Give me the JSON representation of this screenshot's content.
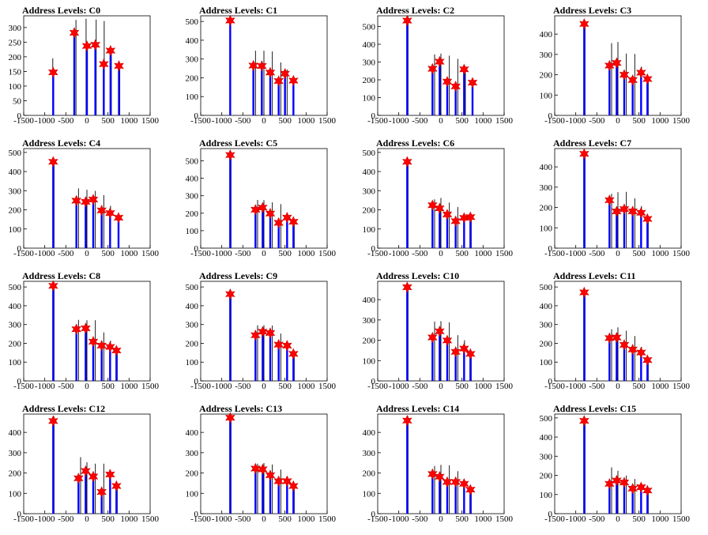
{
  "page": {
    "title_prefix": "Address Levels: ",
    "x_ticks": [
      -1500,
      -1000,
      -500,
      0,
      500,
      1000,
      1500
    ],
    "x_tick_labels": [
      "-1500",
      "-1000",
      "-500",
      "0",
      "500",
      "1000",
      "1500"
    ],
    "xlim": [
      -1500,
      1500
    ],
    "colors": {
      "histogram": "#0000ff",
      "spike": "#000000",
      "marker": "#ff0000",
      "frame": "#000000"
    },
    "marker_icon": "star-marker-icon"
  },
  "chart_data": [
    {
      "type": "bar",
      "title": "Address Levels: C0",
      "ylim": [
        0,
        340
      ],
      "y_ticks": [
        0,
        50,
        100,
        150,
        200,
        250,
        300
      ],
      "peaks": [
        {
          "x": -800,
          "y": 147
        },
        {
          "x": -300,
          "y": 282
        },
        {
          "x": 0,
          "y": 237
        },
        {
          "x": 200,
          "y": 241
        },
        {
          "x": 400,
          "y": 175
        },
        {
          "x": 560,
          "y": 221
        },
        {
          "x": 760,
          "y": 169
        }
      ],
      "spikes": [
        {
          "x": -810,
          "y": 195
        },
        {
          "x": -260,
          "y": 326
        },
        {
          "x": -20,
          "y": 330
        },
        {
          "x": 220,
          "y": 327
        },
        {
          "x": 410,
          "y": 322
        },
        {
          "x": 580,
          "y": 226
        },
        {
          "x": 780,
          "y": 168
        }
      ]
    },
    {
      "type": "bar",
      "title": "Address Levels: C1",
      "ylim": [
        0,
        530
      ],
      "y_ticks": [
        0,
        100,
        200,
        300,
        400,
        500
      ],
      "peaks": [
        {
          "x": -800,
          "y": 505
        },
        {
          "x": -250,
          "y": 265
        },
        {
          "x": -50,
          "y": 263
        },
        {
          "x": 150,
          "y": 228
        },
        {
          "x": 350,
          "y": 183
        },
        {
          "x": 500,
          "y": 222
        },
        {
          "x": 700,
          "y": 185
        }
      ],
      "spikes": [
        {
          "x": -800,
          "y": 520
        },
        {
          "x": -200,
          "y": 344
        },
        {
          "x": 0,
          "y": 344
        },
        {
          "x": 200,
          "y": 340
        },
        {
          "x": 400,
          "y": 282
        },
        {
          "x": 550,
          "y": 244
        },
        {
          "x": 700,
          "y": 203
        }
      ]
    },
    {
      "type": "bar",
      "title": "Address Levels: C2",
      "ylim": [
        0,
        560
      ],
      "y_ticks": [
        0,
        100,
        200,
        300,
        400,
        500
      ],
      "peaks": [
        {
          "x": -800,
          "y": 533
        },
        {
          "x": -200,
          "y": 262
        },
        {
          "x": -30,
          "y": 302
        },
        {
          "x": 150,
          "y": 190
        },
        {
          "x": 350,
          "y": 163
        },
        {
          "x": 550,
          "y": 259
        },
        {
          "x": 750,
          "y": 184
        }
      ],
      "spikes": [
        {
          "x": -780,
          "y": 556
        },
        {
          "x": -150,
          "y": 343
        },
        {
          "x": 0,
          "y": 347
        },
        {
          "x": 200,
          "y": 336
        },
        {
          "x": 400,
          "y": 318
        },
        {
          "x": 580,
          "y": 273
        },
        {
          "x": 760,
          "y": 196
        }
      ]
    },
    {
      "type": "bar",
      "title": "Address Levels: C3",
      "ylim": [
        0,
        490
      ],
      "y_ticks": [
        0,
        100,
        200,
        300,
        400
      ],
      "peaks": [
        {
          "x": -800,
          "y": 450
        },
        {
          "x": -200,
          "y": 245
        },
        {
          "x": -30,
          "y": 258
        },
        {
          "x": 150,
          "y": 200
        },
        {
          "x": 350,
          "y": 174
        },
        {
          "x": 550,
          "y": 210
        },
        {
          "x": 700,
          "y": 179
        }
      ],
      "spikes": [
        {
          "x": -780,
          "y": 468
        },
        {
          "x": -150,
          "y": 356
        },
        {
          "x": 0,
          "y": 361
        },
        {
          "x": 200,
          "y": 304
        },
        {
          "x": 400,
          "y": 302
        },
        {
          "x": 560,
          "y": 240
        },
        {
          "x": 720,
          "y": 178
        }
      ]
    },
    {
      "type": "bar",
      "title": "Address Levels: C4",
      "ylim": [
        0,
        520
      ],
      "y_ticks": [
        0,
        100,
        200,
        300,
        400,
        500
      ],
      "peaks": [
        {
          "x": -800,
          "y": 451
        },
        {
          "x": -250,
          "y": 248
        },
        {
          "x": -30,
          "y": 242
        },
        {
          "x": 150,
          "y": 254
        },
        {
          "x": 350,
          "y": 197
        },
        {
          "x": 550,
          "y": 183
        },
        {
          "x": 750,
          "y": 159
        }
      ],
      "spikes": [
        {
          "x": -780,
          "y": 468
        },
        {
          "x": -200,
          "y": 312
        },
        {
          "x": 0,
          "y": 305
        },
        {
          "x": 200,
          "y": 299
        },
        {
          "x": 400,
          "y": 277
        },
        {
          "x": 560,
          "y": 221
        },
        {
          "x": 760,
          "y": 176
        }
      ]
    },
    {
      "type": "bar",
      "title": "Address Levels: C5",
      "ylim": [
        0,
        570
      ],
      "y_ticks": [
        0,
        100,
        200,
        300,
        400,
        500
      ],
      "peaks": [
        {
          "x": -800,
          "y": 533
        },
        {
          "x": -200,
          "y": 220
        },
        {
          "x": -30,
          "y": 232
        },
        {
          "x": 150,
          "y": 198
        },
        {
          "x": 350,
          "y": 145
        },
        {
          "x": 550,
          "y": 175
        },
        {
          "x": 700,
          "y": 151
        }
      ],
      "spikes": [
        {
          "x": -780,
          "y": 552
        },
        {
          "x": -150,
          "y": 276
        },
        {
          "x": 0,
          "y": 275
        },
        {
          "x": 200,
          "y": 262
        },
        {
          "x": 400,
          "y": 252
        },
        {
          "x": 560,
          "y": 196
        },
        {
          "x": 720,
          "y": 158
        }
      ]
    },
    {
      "type": "bar",
      "title": "Address Levels: C6",
      "ylim": [
        0,
        520
      ],
      "y_ticks": [
        0,
        100,
        200,
        300,
        400,
        500
      ],
      "peaks": [
        {
          "x": -800,
          "y": 451
        },
        {
          "x": -200,
          "y": 224
        },
        {
          "x": -30,
          "y": 208
        },
        {
          "x": 150,
          "y": 176
        },
        {
          "x": 350,
          "y": 141
        },
        {
          "x": 550,
          "y": 158
        },
        {
          "x": 700,
          "y": 162
        }
      ],
      "spikes": [
        {
          "x": -780,
          "y": 468
        },
        {
          "x": -150,
          "y": 255
        },
        {
          "x": 0,
          "y": 262
        },
        {
          "x": 200,
          "y": 238
        },
        {
          "x": 400,
          "y": 215
        },
        {
          "x": 560,
          "y": 174
        },
        {
          "x": 720,
          "y": 170
        }
      ]
    },
    {
      "type": "bar",
      "title": "Address Levels: C7",
      "ylim": [
        0,
        490
      ],
      "y_ticks": [
        0,
        100,
        200,
        300,
        400
      ],
      "peaks": [
        {
          "x": -800,
          "y": 464
        },
        {
          "x": -200,
          "y": 236
        },
        {
          "x": -30,
          "y": 181
        },
        {
          "x": 150,
          "y": 192
        },
        {
          "x": 350,
          "y": 181
        },
        {
          "x": 550,
          "y": 174
        },
        {
          "x": 700,
          "y": 144
        }
      ],
      "spikes": [
        {
          "x": -780,
          "y": 478
        },
        {
          "x": -150,
          "y": 268
        },
        {
          "x": 0,
          "y": 275
        },
        {
          "x": 200,
          "y": 277
        },
        {
          "x": 400,
          "y": 245
        },
        {
          "x": 560,
          "y": 207
        },
        {
          "x": 720,
          "y": 150
        }
      ]
    },
    {
      "type": "bar",
      "title": "Address Levels: C8",
      "ylim": [
        0,
        530
      ],
      "y_ticks": [
        0,
        100,
        200,
        300,
        400,
        500
      ],
      "peaks": [
        {
          "x": -800,
          "y": 506
        },
        {
          "x": -250,
          "y": 275
        },
        {
          "x": -30,
          "y": 280
        },
        {
          "x": 150,
          "y": 209
        },
        {
          "x": 350,
          "y": 188
        },
        {
          "x": 550,
          "y": 181
        },
        {
          "x": 700,
          "y": 162
        }
      ],
      "spikes": [
        {
          "x": -780,
          "y": 520
        },
        {
          "x": -200,
          "y": 325
        },
        {
          "x": 0,
          "y": 323
        },
        {
          "x": 200,
          "y": 323
        },
        {
          "x": 400,
          "y": 258
        },
        {
          "x": 560,
          "y": 214
        },
        {
          "x": 720,
          "y": 169
        }
      ]
    },
    {
      "type": "bar",
      "title": "Address Levels: C9",
      "ylim": [
        0,
        530
      ],
      "y_ticks": [
        0,
        100,
        200,
        300,
        400,
        500
      ],
      "peaks": [
        {
          "x": -800,
          "y": 462
        },
        {
          "x": -200,
          "y": 243
        },
        {
          "x": -30,
          "y": 262
        },
        {
          "x": 150,
          "y": 255
        },
        {
          "x": 350,
          "y": 193
        },
        {
          "x": 550,
          "y": 188
        },
        {
          "x": 700,
          "y": 144
        }
      ],
      "spikes": [
        {
          "x": -780,
          "y": 480
        },
        {
          "x": -150,
          "y": 296
        },
        {
          "x": 0,
          "y": 296
        },
        {
          "x": 200,
          "y": 295
        },
        {
          "x": 400,
          "y": 252
        },
        {
          "x": 560,
          "y": 203
        },
        {
          "x": 720,
          "y": 150
        }
      ]
    },
    {
      "type": "bar",
      "title": "Address Levels: C10",
      "ylim": [
        0,
        490
      ],
      "y_ticks": [
        0,
        100,
        200,
        300,
        400
      ],
      "peaks": [
        {
          "x": -800,
          "y": 461
        },
        {
          "x": -200,
          "y": 214
        },
        {
          "x": -30,
          "y": 244
        },
        {
          "x": 150,
          "y": 199
        },
        {
          "x": 350,
          "y": 143
        },
        {
          "x": 550,
          "y": 159
        },
        {
          "x": 700,
          "y": 133
        }
      ],
      "spikes": [
        {
          "x": -780,
          "y": 478
        },
        {
          "x": -150,
          "y": 292
        },
        {
          "x": 0,
          "y": 294
        },
        {
          "x": 200,
          "y": 288
        },
        {
          "x": 400,
          "y": 225
        },
        {
          "x": 560,
          "y": 200
        },
        {
          "x": 720,
          "y": 142
        }
      ]
    },
    {
      "type": "bar",
      "title": "Address Levels: C11",
      "ylim": [
        0,
        530
      ],
      "y_ticks": [
        0,
        100,
        200,
        300,
        400,
        500
      ],
      "peaks": [
        {
          "x": -800,
          "y": 471
        },
        {
          "x": -200,
          "y": 228
        },
        {
          "x": -30,
          "y": 231
        },
        {
          "x": 150,
          "y": 192
        },
        {
          "x": 350,
          "y": 167
        },
        {
          "x": 550,
          "y": 151
        },
        {
          "x": 700,
          "y": 111
        }
      ],
      "spikes": [
        {
          "x": -780,
          "y": 480
        },
        {
          "x": -150,
          "y": 275
        },
        {
          "x": 0,
          "y": 285
        },
        {
          "x": 200,
          "y": 267
        },
        {
          "x": 400,
          "y": 239
        },
        {
          "x": 560,
          "y": 181
        },
        {
          "x": 720,
          "y": 116
        }
      ]
    },
    {
      "type": "bar",
      "title": "Address Levels: C12",
      "ylim": [
        0,
        490
      ],
      "y_ticks": [
        0,
        100,
        200,
        300,
        400
      ],
      "peaks": [
        {
          "x": -800,
          "y": 456
        },
        {
          "x": -200,
          "y": 174
        },
        {
          "x": -30,
          "y": 210
        },
        {
          "x": 150,
          "y": 183
        },
        {
          "x": 350,
          "y": 107
        },
        {
          "x": 550,
          "y": 193
        },
        {
          "x": 700,
          "y": 136
        }
      ],
      "spikes": [
        {
          "x": -780,
          "y": 478
        },
        {
          "x": -150,
          "y": 278
        },
        {
          "x": 0,
          "y": 253
        },
        {
          "x": 200,
          "y": 246
        },
        {
          "x": 400,
          "y": 246
        },
        {
          "x": 560,
          "y": 198
        },
        {
          "x": 720,
          "y": 140
        }
      ]
    },
    {
      "type": "bar",
      "title": "Address Levels: C13",
      "ylim": [
        0,
        490
      ],
      "y_ticks": [
        0,
        100,
        200,
        300,
        400
      ],
      "peaks": [
        {
          "x": -800,
          "y": 472
        },
        {
          "x": -200,
          "y": 222
        },
        {
          "x": -30,
          "y": 218
        },
        {
          "x": 150,
          "y": 189
        },
        {
          "x": 350,
          "y": 160
        },
        {
          "x": 550,
          "y": 160
        },
        {
          "x": 700,
          "y": 136
        }
      ],
      "spikes": [
        {
          "x": -780,
          "y": 480
        },
        {
          "x": -150,
          "y": 246
        },
        {
          "x": 0,
          "y": 249
        },
        {
          "x": 200,
          "y": 242
        },
        {
          "x": 400,
          "y": 217
        },
        {
          "x": 560,
          "y": 182
        },
        {
          "x": 720,
          "y": 145
        }
      ]
    },
    {
      "type": "bar",
      "title": "Address Levels: C14",
      "ylim": [
        0,
        490
      ],
      "y_ticks": [
        0,
        100,
        200,
        300,
        400
      ],
      "peaks": [
        {
          "x": -800,
          "y": 458
        },
        {
          "x": -200,
          "y": 195
        },
        {
          "x": -30,
          "y": 182
        },
        {
          "x": 150,
          "y": 156
        },
        {
          "x": 350,
          "y": 156
        },
        {
          "x": 550,
          "y": 147
        },
        {
          "x": 700,
          "y": 118
        }
      ],
      "spikes": [
        {
          "x": -780,
          "y": 478
        },
        {
          "x": -150,
          "y": 235
        },
        {
          "x": 0,
          "y": 240
        },
        {
          "x": 200,
          "y": 238
        },
        {
          "x": 400,
          "y": 209
        },
        {
          "x": 560,
          "y": 166
        },
        {
          "x": 720,
          "y": 125
        }
      ]
    },
    {
      "type": "bar",
      "title": "Address Levels: C15",
      "ylim": [
        0,
        520
      ],
      "y_ticks": [
        0,
        100,
        200,
        300,
        400,
        500
      ],
      "peaks": [
        {
          "x": -800,
          "y": 485
        },
        {
          "x": -200,
          "y": 156
        },
        {
          "x": -30,
          "y": 173
        },
        {
          "x": 150,
          "y": 163
        },
        {
          "x": 350,
          "y": 131
        },
        {
          "x": 550,
          "y": 138
        },
        {
          "x": 700,
          "y": 121
        }
      ],
      "spikes": [
        {
          "x": -780,
          "y": 500
        },
        {
          "x": -150,
          "y": 242
        },
        {
          "x": 0,
          "y": 224
        },
        {
          "x": 200,
          "y": 199
        },
        {
          "x": 400,
          "y": 181
        },
        {
          "x": 560,
          "y": 152
        },
        {
          "x": 720,
          "y": 130
        }
      ]
    }
  ]
}
